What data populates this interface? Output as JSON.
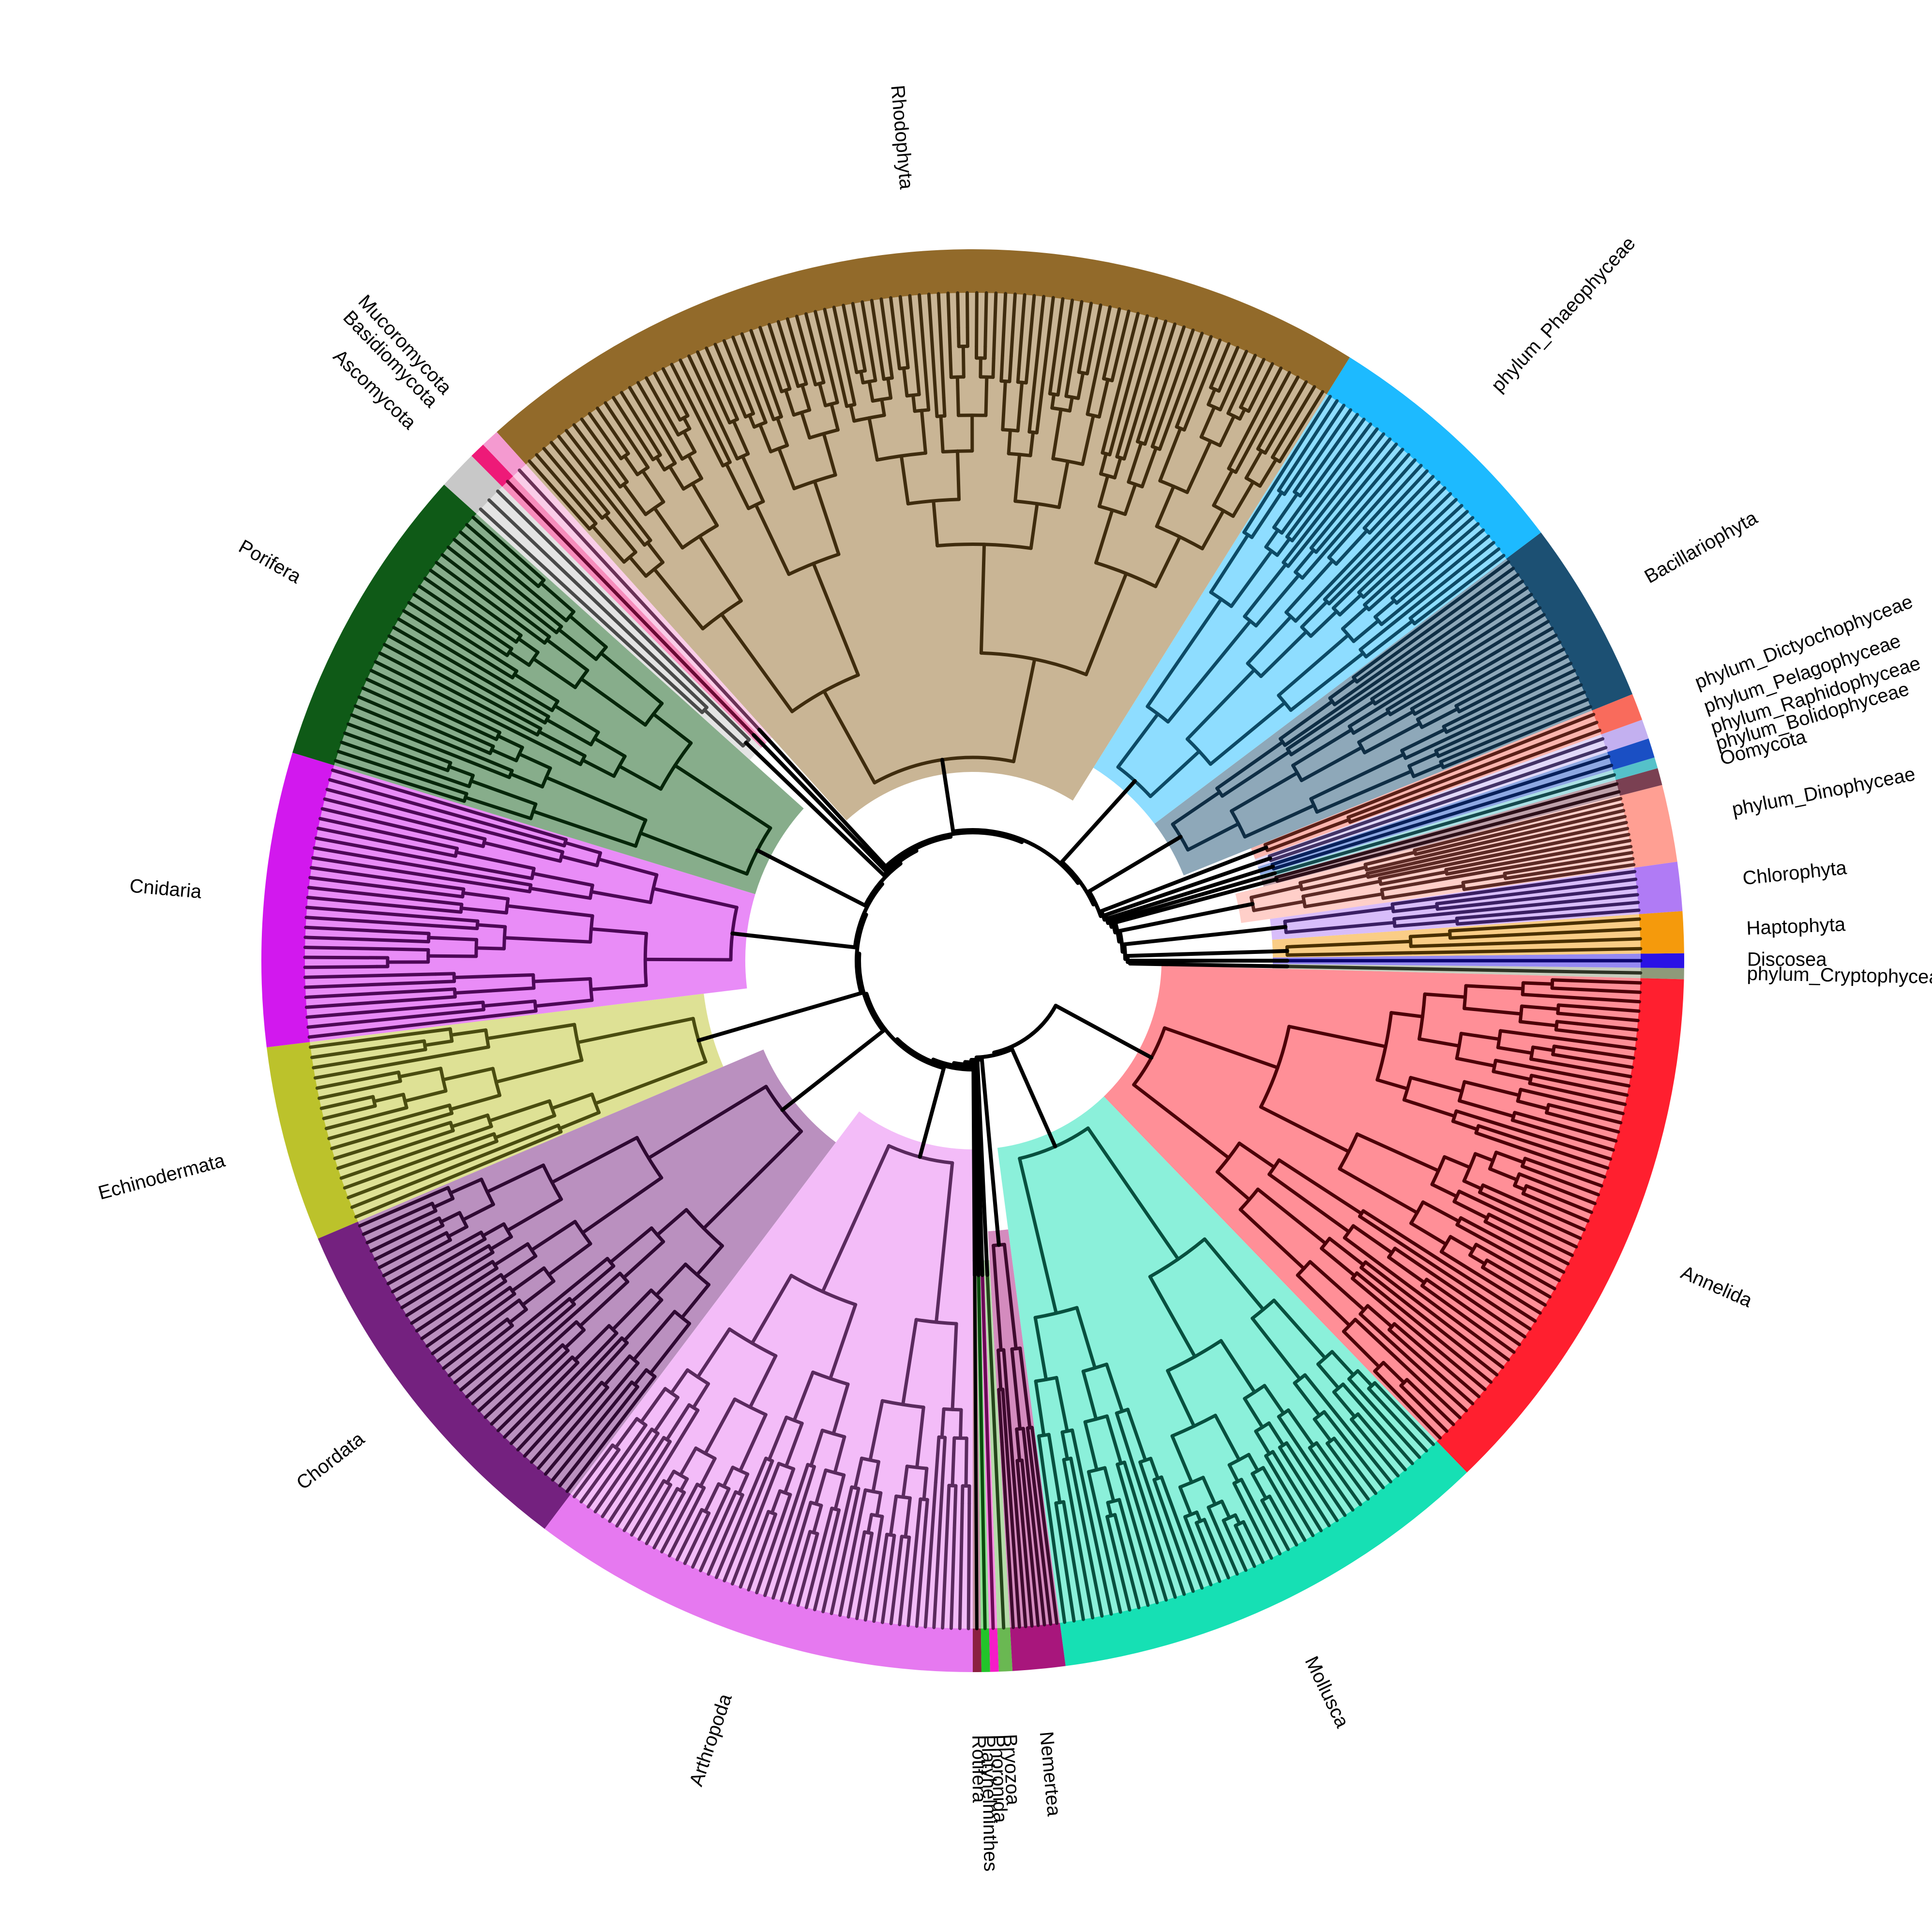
{
  "tree": {
    "background": "#ffffff",
    "backbone_color": "#000000",
    "clades": [
      {
        "name": "phylum_Cryptophyceae",
        "label": "phylum_Cryptophyceae",
        "color": "#8e9a7a",
        "start": -1.5,
        "end": -0.6,
        "leaves": 1,
        "branch": "#2d3324"
      },
      {
        "name": "Discosea",
        "label": "Discosea",
        "color": "#2a12e6",
        "start": -0.6,
        "end": 0.6,
        "leaves": 1,
        "branch": "#0b0570"
      },
      {
        "name": "Haptophyta",
        "label": "Haptophyta",
        "color": "#f59a0c",
        "start": 0.6,
        "end": 4.0,
        "leaves": 4,
        "branch": "#4a3000"
      },
      {
        "name": "Chlorophyta",
        "label": "Chlorophyta",
        "color": "#b07bf5",
        "start": 4.0,
        "end": 8.0,
        "leaves": 6,
        "branch": "#3a1f63"
      },
      {
        "name": "phylum_Dinophyceae",
        "label": "phylum_Dinophyceae",
        "color": "#ff9f93",
        "start": 8.0,
        "end": 14.3,
        "leaves": 12,
        "branch": "#5c2a25"
      },
      {
        "name": "Oomycota",
        "label": "Oomycota",
        "color": "#7a4052",
        "start": 14.3,
        "end": 15.7,
        "leaves": 2,
        "branch": "#2d1019"
      },
      {
        "name": "phylum_Bolidophyceae",
        "label": "phylum_Bolidophyceae",
        "color": "#55c1c9",
        "start": 15.7,
        "end": 16.6,
        "leaves": 1,
        "branch": "#15494d"
      },
      {
        "name": "phylum_Raphidophyceae",
        "label": "phylum_Raphidophyceae",
        "color": "#1a4fc4",
        "start": 16.6,
        "end": 18.2,
        "leaves": 2,
        "branch": "#08205a"
      },
      {
        "name": "phylum_Pelagophyceae",
        "label": "phylum_Pelagophyceae",
        "color": "#c3b0f0",
        "start": 18.2,
        "end": 19.8,
        "leaves": 2,
        "branch": "#433366"
      },
      {
        "name": "phylum_Dictyochophyceae",
        "label": "phylum_Dictyochophyceae",
        "color": "#f96b5c",
        "start": 19.8,
        "end": 22.0,
        "leaves": 3,
        "branch": "#5a2018"
      },
      {
        "name": "Bacillariophyta",
        "label": "Bacillariophyta",
        "color": "#1c5073",
        "start": 22.0,
        "end": 37.0,
        "leaves": 22,
        "branch": "#0f2e45"
      },
      {
        "name": "phylum_Phaeophyceae",
        "label": "phylum_Phaeophyceae",
        "color": "#1dbaff",
        "start": 37.0,
        "end": 58.0,
        "leaves": 30,
        "branch": "#0d4a66"
      },
      {
        "name": "Rhodophyta",
        "label": "Rhodophyta",
        "color": "#926a2a",
        "start": 58.0,
        "end": 132.0,
        "leaves": 90,
        "branch": "#3f2c0e"
      },
      {
        "name": "Mucoromycota",
        "label": "Mucoromycota",
        "color": "#f49ad0",
        "start": 132.0,
        "end": 133.5,
        "leaves": 1,
        "branch": "#6a3257"
      },
      {
        "name": "Basidiomycota",
        "label": "Basidiomycota",
        "color": "#ee1a78",
        "start": 133.5,
        "end": 134.8,
        "leaves": 1,
        "branch": "#6a0a34"
      },
      {
        "name": "Ascomycota",
        "label": "Ascomycota",
        "color": "#c8c8c8",
        "start": 134.8,
        "end": 138.0,
        "leaves": 3,
        "branch": "#4a4a4a"
      },
      {
        "name": "Porifera",
        "label": "Porifera",
        "color": "#0f5a17",
        "start": 138.0,
        "end": 163.0,
        "leaves": 30,
        "branch": "#06260a"
      },
      {
        "name": "Cnidaria",
        "label": "Cnidaria",
        "color": "#d218ee",
        "start": 163.0,
        "end": 187.0,
        "leaves": 28,
        "branch": "#4d0857"
      },
      {
        "name": "Echinodermata",
        "label": "Echinodermata",
        "color": "#bcc22b",
        "start": 187.0,
        "end": 203.0,
        "leaves": 18,
        "branch": "#4a4c10"
      },
      {
        "name": "Chordata",
        "label": "Chordata",
        "color": "#74217f",
        "start": 203.0,
        "end": 233.0,
        "leaves": 38,
        "branch": "#2f0a33"
      },
      {
        "name": "Arthropoda",
        "label": "Arthropoda",
        "color": "#e679f0",
        "start": 233.0,
        "end": 270.0,
        "leaves": 50,
        "branch": "#5a2a5e"
      },
      {
        "name": "Rotifera",
        "label": "Rotifera",
        "color": "#8b2040",
        "start": 270.0,
        "end": 270.7,
        "leaves": 1,
        "branch": "#000000"
      },
      {
        "name": "Platyhelminthes",
        "label": "Platyhelminthes",
        "color": "#22c42a",
        "start": 270.7,
        "end": 271.4,
        "leaves": 1,
        "branch": "#0a4a0c"
      },
      {
        "name": "Phoronida",
        "label": "Phoronida",
        "color": "#f51cc8",
        "start": 271.4,
        "end": 272.1,
        "leaves": 1,
        "branch": "#6a0a55"
      },
      {
        "name": "Bryozoa",
        "label": "Bryozoa",
        "color": "#6ab852",
        "start": 272.1,
        "end": 273.2,
        "leaves": 1,
        "branch": "#24441a"
      },
      {
        "name": "Nemertea",
        "label": "Nemertea",
        "color": "#a8167c",
        "start": 273.2,
        "end": 277.5,
        "leaves": 8,
        "branch": "#3e0a2e"
      },
      {
        "name": "Mollusca",
        "label": "Mollusca",
        "color": "#16e0b4",
        "start": 277.5,
        "end": 314.0,
        "leaves": 45,
        "branch": "#08503f"
      },
      {
        "name": "Annelida",
        "label": "Annelida",
        "color": "#ff1f2f",
        "start": 314.0,
        "end": 358.5,
        "leaves": 55,
        "branch": "#4d0008"
      }
    ]
  }
}
